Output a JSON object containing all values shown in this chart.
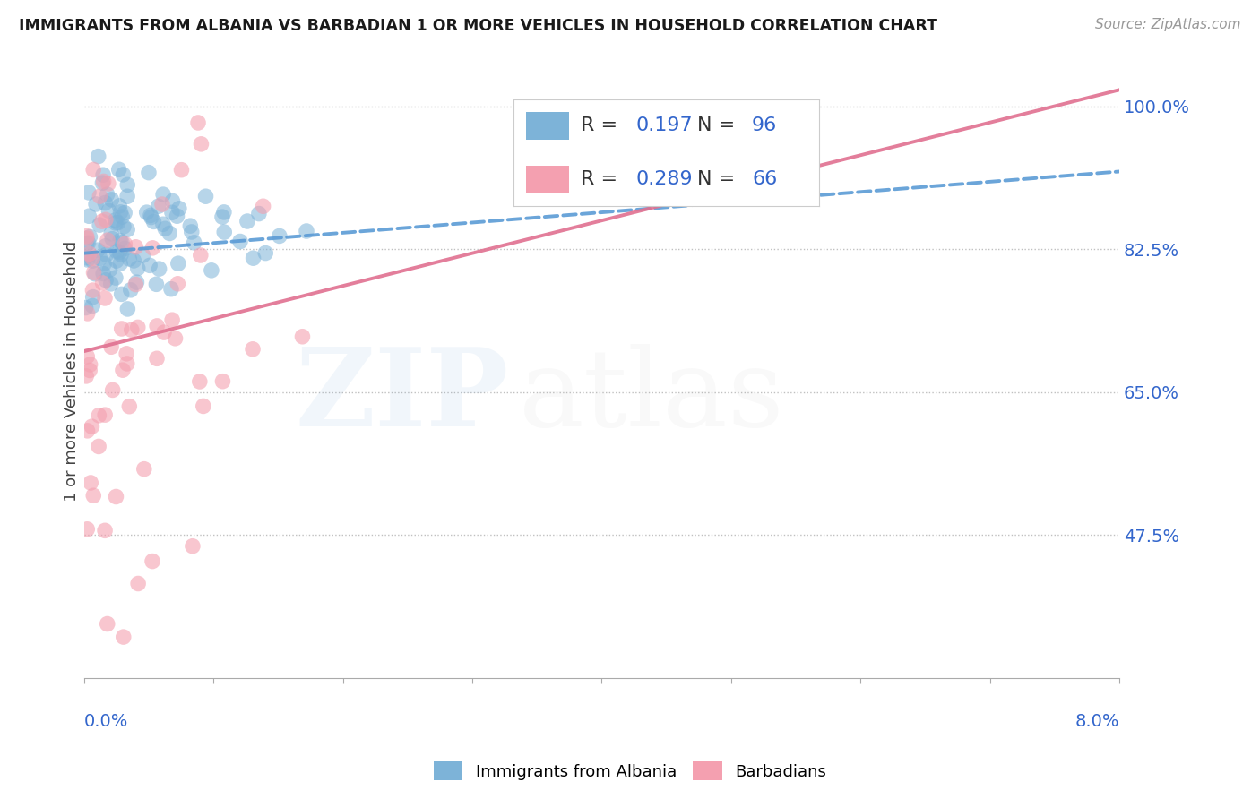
{
  "title": "IMMIGRANTS FROM ALBANIA VS BARBADIAN 1 OR MORE VEHICLES IN HOUSEHOLD CORRELATION CHART",
  "source": "Source: ZipAtlas.com",
  "ylabel": "1 or more Vehicles in Household",
  "yticks": [
    47.5,
    65.0,
    82.5,
    100.0
  ],
  "ytick_labels": [
    "47.5%",
    "65.0%",
    "82.5%",
    "100.0%"
  ],
  "xmin": 0.0,
  "xmax": 8.0,
  "ymin": 30.0,
  "ymax": 105.0,
  "albania_color": "#7DB3D8",
  "barbadian_color": "#F4A0B0",
  "albania_line_color": "#5B9BD5",
  "barbadian_line_color": "#E07090",
  "albania_R": 0.197,
  "albania_N": 96,
  "barbadian_R": 0.289,
  "barbadian_N": 66,
  "legend_label_albania": "Immigrants from Albania",
  "legend_label_barbadian": "Barbadians",
  "albania_trend_x0": 0.0,
  "albania_trend_y0": 82.0,
  "albania_trend_x1": 8.0,
  "albania_trend_y1": 92.0,
  "barbadian_trend_x0": 0.0,
  "barbadian_trend_y0": 70.0,
  "barbadian_trend_x1": 8.0,
  "barbadian_trend_y1": 102.0
}
